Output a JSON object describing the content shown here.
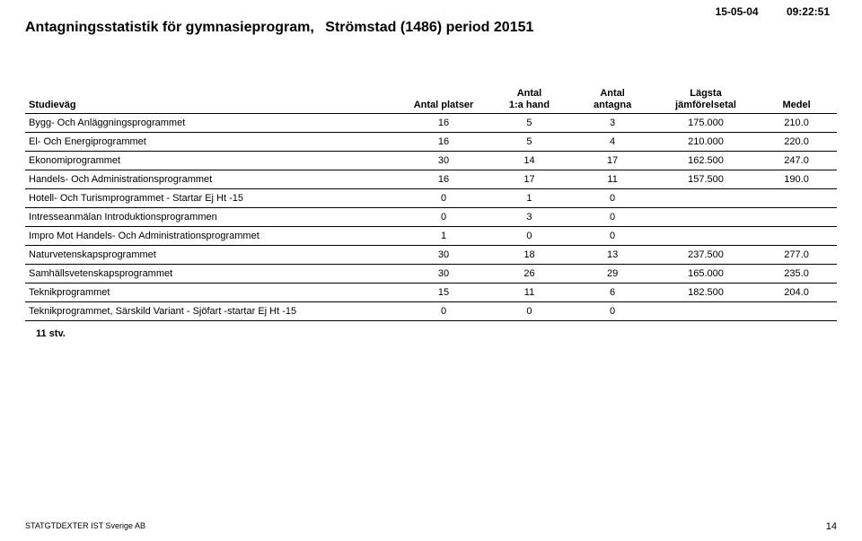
{
  "header": {
    "date": "15-05-04",
    "time": "09:22:51",
    "title_part1": "Antagningsstatistik för gymnasieprogram,",
    "title_part2": "Strömstad (1486) period 20151"
  },
  "table": {
    "columns": {
      "name": "Studieväg",
      "platser": "Antal platser",
      "firsthand_l1": "Antal",
      "firsthand_l2": "1:a hand",
      "antagna_l1": "Antal",
      "antagna_l2": "antagna",
      "lagsta_l1": "Lägsta",
      "lagsta_l2": "jämförelsetal",
      "medel": "Medel"
    },
    "rows": [
      {
        "name": "Bygg- Och Anläggningsprogrammet",
        "platser": "16",
        "firsthand": "5",
        "antagna": "3",
        "lagsta": "175.000",
        "medel": "210.0"
      },
      {
        "name": "El- Och Energiprogrammet",
        "platser": "16",
        "firsthand": "5",
        "antagna": "4",
        "lagsta": "210.000",
        "medel": "220.0"
      },
      {
        "name": "Ekonomiprogrammet",
        "platser": "30",
        "firsthand": "14",
        "antagna": "17",
        "lagsta": "162.500",
        "medel": "247.0"
      },
      {
        "name": "Handels- Och Administrationsprogrammet",
        "platser": "16",
        "firsthand": "17",
        "antagna": "11",
        "lagsta": "157.500",
        "medel": "190.0"
      },
      {
        "name": "Hotell- Och Turismprogrammet - Startar Ej Ht -15",
        "platser": "0",
        "firsthand": "1",
        "antagna": "0",
        "lagsta": "",
        "medel": ""
      },
      {
        "name": "Intresseanmälan Introduktionsprogrammen",
        "platser": "0",
        "firsthand": "3",
        "antagna": "0",
        "lagsta": "",
        "medel": ""
      },
      {
        "name": "Impro Mot Handels- Och Administrationsprogrammet",
        "platser": "1",
        "firsthand": "0",
        "antagna": "0",
        "lagsta": "",
        "medel": ""
      },
      {
        "name": "Naturvetenskapsprogrammet",
        "platser": "30",
        "firsthand": "18",
        "antagna": "13",
        "lagsta": "237.500",
        "medel": "277.0"
      },
      {
        "name": "Samhällsvetenskapsprogrammet",
        "platser": "30",
        "firsthand": "26",
        "antagna": "29",
        "lagsta": "165.000",
        "medel": "235.0"
      },
      {
        "name": "Teknikprogrammet",
        "platser": "15",
        "firsthand": "11",
        "antagna": "6",
        "lagsta": "182.500",
        "medel": "204.0"
      },
      {
        "name": "Teknikprogrammet, Särskild Variant - Sjöfart -startar Ej Ht -15",
        "platser": "0",
        "firsthand": "0",
        "antagna": "0",
        "lagsta": "",
        "medel": ""
      }
    ],
    "count_label": "11   stv."
  },
  "footer": {
    "source": "STATGTDEXTER  IST Sverige AB",
    "page": "14"
  }
}
